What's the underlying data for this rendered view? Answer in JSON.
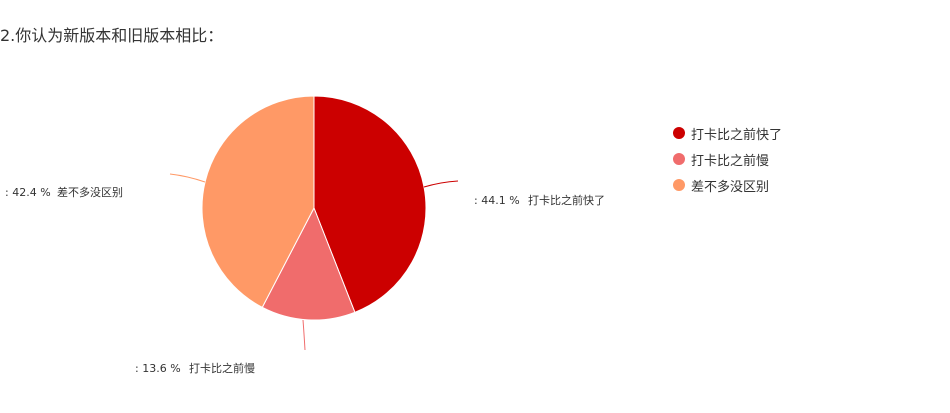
{
  "title": "2.你认为新版本和旧版本相比：",
  "chart_data": {
    "type": "pie",
    "categories": [
      "打卡比之前快了",
      "打卡比之前慢",
      "差不多没区别"
    ],
    "values": [
      44.1,
      13.6,
      42.4
    ],
    "unit": "%",
    "colors": [
      "#cc0000",
      "#f06c6c",
      "#ff9966"
    ],
    "legend_placement": "right",
    "labels": [
      ": 44.1 %",
      ": 13.6 %",
      ": 42.4 %"
    ]
  }
}
